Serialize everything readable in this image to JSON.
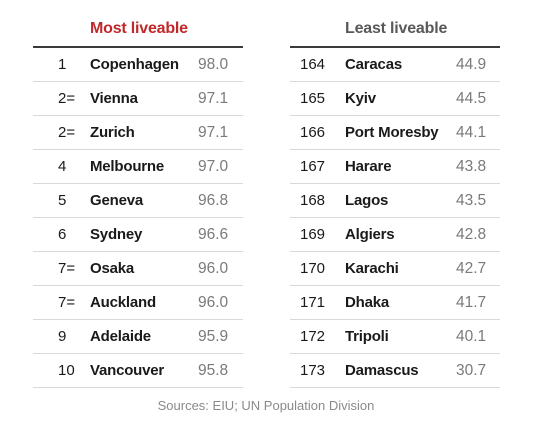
{
  "most": {
    "title": "Most liveable",
    "title_color": "#c0292b",
    "rows": [
      {
        "rank": "1",
        "city": "Copenhagen",
        "score": "98.0"
      },
      {
        "rank": "2=",
        "city": "Vienna",
        "score": "97.1"
      },
      {
        "rank": "2=",
        "city": "Zurich",
        "score": "97.1"
      },
      {
        "rank": "4",
        "city": "Melbourne",
        "score": "97.0"
      },
      {
        "rank": "5",
        "city": "Geneva",
        "score": "96.8"
      },
      {
        "rank": "6",
        "city": "Sydney",
        "score": "96.6"
      },
      {
        "rank": "7=",
        "city": "Osaka",
        "score": "96.0"
      },
      {
        "rank": "7=",
        "city": "Auckland",
        "score": "96.0"
      },
      {
        "rank": "9",
        "city": "Adelaide",
        "score": "95.9"
      },
      {
        "rank": "10",
        "city": "Vancouver",
        "score": "95.8"
      }
    ]
  },
  "least": {
    "title": "Least liveable",
    "title_color": "#595959",
    "rows": [
      {
        "rank": "164",
        "city": "Caracas",
        "score": "44.9"
      },
      {
        "rank": "165",
        "city": "Kyiv",
        "score": "44.5"
      },
      {
        "rank": "166",
        "city": "Port Moresby",
        "score": "44.1"
      },
      {
        "rank": "167",
        "city": "Harare",
        "score": "43.8"
      },
      {
        "rank": "168",
        "city": "Lagos",
        "score": "43.5"
      },
      {
        "rank": "169",
        "city": "Algiers",
        "score": "42.8"
      },
      {
        "rank": "170",
        "city": "Karachi",
        "score": "42.7"
      },
      {
        "rank": "171",
        "city": "Dhaka",
        "score": "41.7"
      },
      {
        "rank": "172",
        "city": "Tripoli",
        "score": "40.1"
      },
      {
        "rank": "173",
        "city": "Damascus",
        "score": "30.7"
      }
    ]
  },
  "footer": {
    "sources": "Sources: EIU; UN Population Division"
  }
}
